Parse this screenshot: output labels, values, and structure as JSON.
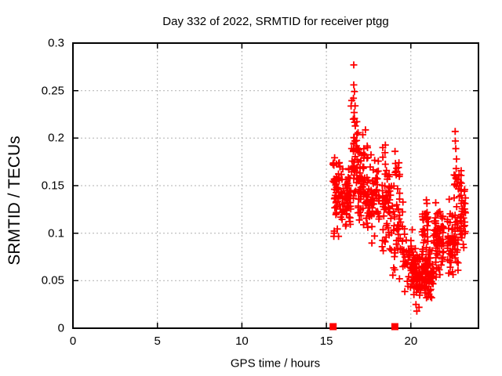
{
  "title": "Day 332 of 2022, SRMTID for receiver ptgg",
  "colors": {
    "points": "#ff0000",
    "axis_markers": "#ff0000",
    "grid": "#b0b0b0",
    "axis": "#000000",
    "background": "#ffffff"
  },
  "chart_data": {
    "type": "scatter",
    "title": "Day 332 of 2022, SRMTID for receiver ptgg",
    "xlabel": "GPS time / hours",
    "ylabel": "SRMTID / TECUs",
    "xlim": [
      0,
      24
    ],
    "ylim": [
      0,
      0.3
    ],
    "x_ticks": [
      0,
      5,
      10,
      15,
      20
    ],
    "x_tick_labels": [
      "0",
      "5",
      "10",
      "15",
      "20"
    ],
    "y_ticks": [
      0,
      0.05,
      0.1,
      0.15,
      0.2,
      0.25,
      0.3
    ],
    "y_tick_labels": [
      "0",
      "0.05",
      "0.1",
      "0.15",
      "0.2",
      "0.25",
      "0.3"
    ],
    "grid": true,
    "legend": "none",
    "marker": "plus",
    "marker_color": "#ff0000",
    "seed": 7,
    "points": [
      [
        16.62,
        0.277
      ],
      [
        16.62,
        0.256
      ],
      [
        16.66,
        0.249
      ],
      [
        16.6,
        0.242
      ],
      [
        16.7,
        0.234
      ],
      [
        16.64,
        0.227
      ],
      [
        16.59,
        0.22
      ],
      [
        16.71,
        0.213
      ],
      [
        22.62,
        0.207
      ],
      [
        22.63,
        0.197
      ],
      [
        22.66,
        0.189
      ],
      [
        22.7,
        0.178
      ],
      [
        22.68,
        0.168
      ],
      [
        20.35,
        0.018
      ],
      [
        20.48,
        0.022
      ],
      [
        20.3,
        0.025
      ]
    ],
    "clusters": [
      {
        "x": [
          15.35,
          15.6
        ],
        "y": [
          0.09,
          0.2
        ],
        "n": 22
      },
      {
        "x": [
          15.55,
          16.45
        ],
        "y": [
          0.095,
          0.185
        ],
        "n": 95
      },
      {
        "x": [
          16.45,
          16.8
        ],
        "y": [
          0.13,
          0.25
        ],
        "n": 40
      },
      {
        "x": [
          16.8,
          17.45
        ],
        "y": [
          0.1,
          0.215
        ],
        "n": 75
      },
      {
        "x": [
          17.45,
          18.15
        ],
        "y": [
          0.085,
          0.185
        ],
        "n": 60
      },
      {
        "x": [
          18.3,
          18.8
        ],
        "y": [
          0.06,
          0.215
        ],
        "n": 55
      },
      {
        "x": [
          18.8,
          19.55
        ],
        "y": [
          0.05,
          0.165
        ],
        "n": 45
      },
      {
        "x": [
          18.95,
          19.4
        ],
        "y": [
          0.12,
          0.19
        ],
        "n": 15
      },
      {
        "x": [
          19.55,
          20.1
        ],
        "y": [
          0.035,
          0.12
        ],
        "n": 30
      },
      {
        "x": [
          20.0,
          21.35
        ],
        "y": [
          0.028,
          0.088
        ],
        "n": 160
      },
      {
        "x": [
          20.65,
          21.05
        ],
        "y": [
          0.07,
          0.145
        ],
        "n": 30
      },
      {
        "x": [
          21.35,
          21.95
        ],
        "y": [
          0.05,
          0.138
        ],
        "n": 70
      },
      {
        "x": [
          22.15,
          22.8
        ],
        "y": [
          0.045,
          0.138
        ],
        "n": 65
      },
      {
        "x": [
          22.55,
          23.0
        ],
        "y": [
          0.135,
          0.175
        ],
        "n": 14
      },
      {
        "x": [
          22.85,
          23.25
        ],
        "y": [
          0.08,
          0.162
        ],
        "n": 40
      }
    ],
    "axis_markers": {
      "shape": "filled-square",
      "color": "#ff0000",
      "x": [
        15.4,
        19.05
      ],
      "y": 0
    }
  }
}
